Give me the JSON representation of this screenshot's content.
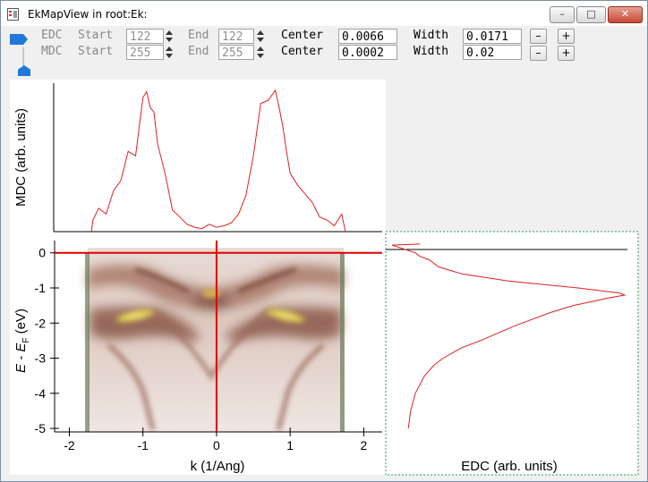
{
  "window": {
    "title": "EkMapView in root:Ek:"
  },
  "window_controls": {
    "minimize": "–",
    "maximize": "□",
    "close": "✕"
  },
  "edc_row": {
    "label": "EDC",
    "start_label": "Start",
    "start_value": "122",
    "end_label": "End",
    "end_value": "122",
    "center_label": "Center",
    "center_value": "0.0066",
    "width_label": "Width",
    "width_value": "0.0171",
    "minus": "–",
    "plus": "+"
  },
  "mdc_row": {
    "label": "MDC",
    "start_label": "Start",
    "start_value": "255",
    "end_label": "End",
    "end_value": "255",
    "center_label": "Center",
    "center_value": "0.0002",
    "width_label": "Width",
    "width_value": "0.02",
    "minus": "–",
    "plus": "+"
  },
  "colors": {
    "curve": "#e02020",
    "cursor": "#e00000",
    "band_dark": "#7a4a3a",
    "band_bright": "#e8d85a"
  },
  "chart_data": [
    {
      "type": "line",
      "name": "MDC",
      "ylabel": "MDC (arb. units)",
      "xlim": [
        -2.2,
        2.25
      ],
      "x": [
        -1.7,
        -1.68,
        -1.6,
        -1.5,
        -1.4,
        -1.3,
        -1.2,
        -1.1,
        -1.0,
        -0.95,
        -0.9,
        -0.85,
        -0.8,
        -0.7,
        -0.6,
        -0.5,
        -0.4,
        -0.3,
        -0.2,
        -0.1,
        0,
        0.1,
        0.2,
        0.3,
        0.4,
        0.5,
        0.6,
        0.7,
        0.8,
        0.85,
        0.9,
        0.95,
        1.0,
        1.1,
        1.2,
        1.3,
        1.4,
        1.5,
        1.6,
        1.7,
        1.75
      ],
      "y": [
        0.0,
        0.08,
        0.16,
        0.12,
        0.28,
        0.35,
        0.55,
        0.52,
        0.92,
        0.96,
        0.85,
        0.82,
        0.6,
        0.4,
        0.15,
        0.1,
        0.05,
        0.03,
        0.02,
        0.05,
        0.03,
        0.04,
        0.06,
        0.12,
        0.25,
        0.52,
        0.88,
        0.9,
        0.97,
        0.85,
        0.72,
        0.55,
        0.4,
        0.32,
        0.26,
        0.2,
        0.1,
        0.08,
        0.04,
        0.12,
        0.0
      ]
    },
    {
      "type": "heatmap",
      "name": "E-k map",
      "xlabel": "k (1/Ang)",
      "ylabel_main": "E - E",
      "ylabel_sub": "F",
      "ylabel_unit": " (eV)",
      "xlim": [
        -2.2,
        2.25
      ],
      "ylim": [
        -5.1,
        0.35
      ],
      "xticks": [
        "-2",
        "-1",
        "0",
        "1",
        "2"
      ],
      "yticks": [
        "0",
        "-1",
        "-2",
        "-3",
        "-4",
        "-5"
      ],
      "cursor_k": 0.0,
      "cursor_e": 0.0
    },
    {
      "type": "line",
      "name": "EDC",
      "xlabel": "EDC (arb. units)",
      "ylim": [
        -5.1,
        0.35
      ],
      "y": [
        0.25,
        0.22,
        0.0,
        -0.1,
        -0.2,
        -0.4,
        -0.6,
        -0.8,
        -0.9,
        -1.0,
        -1.1,
        -1.15,
        -1.2,
        -1.3,
        -1.5,
        -1.7,
        -1.9,
        -2.1,
        -2.3,
        -2.5,
        -2.7,
        -3.0,
        -3.2,
        -3.5,
        -4.0,
        -4.5,
        -5.0
      ],
      "x": [
        0.12,
        0.0,
        0.1,
        0.12,
        0.16,
        0.2,
        0.3,
        0.5,
        0.65,
        0.8,
        0.92,
        0.98,
        1.0,
        0.92,
        0.78,
        0.68,
        0.6,
        0.52,
        0.45,
        0.38,
        0.3,
        0.22,
        0.18,
        0.14,
        0.1,
        0.08,
        0.07
      ]
    }
  ]
}
